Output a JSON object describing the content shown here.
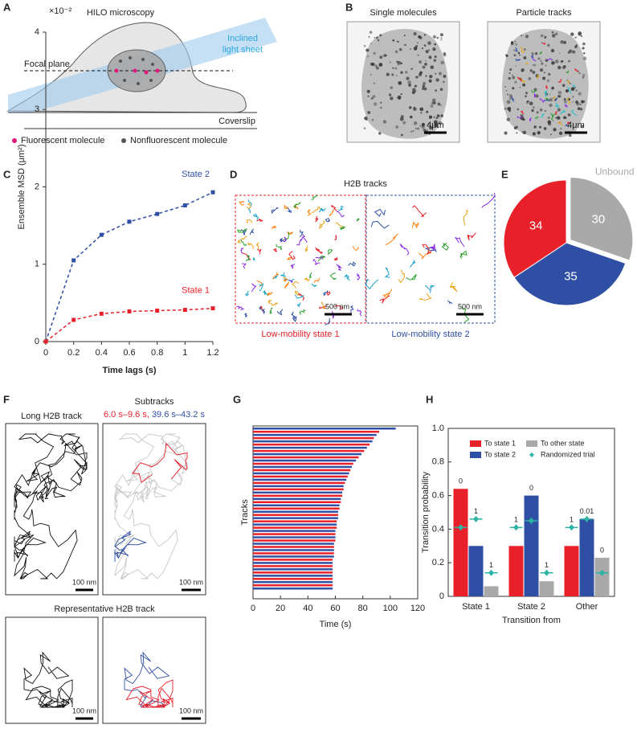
{
  "panel_labels": [
    "A",
    "B",
    "C",
    "D",
    "E",
    "F",
    "G",
    "H"
  ],
  "a": {
    "title": "HILO microscopy",
    "sheet": [
      "Inclined",
      "light sheet"
    ],
    "focal": "Focal plane",
    "coverslip": "Coverslip",
    "legend": [
      "Fluorescent molecule",
      "Nonfluorescent molecule"
    ]
  },
  "b": {
    "titles": [
      "Single molecules",
      "Particle tracks"
    ],
    "scale": [
      "4μm",
      "4μm"
    ]
  },
  "d": {
    "title": "H2B tracks",
    "scale": [
      "500 nm",
      "500 nm"
    ],
    "captions": [
      "Low-mobility state 1",
      "Low-mobility state 2"
    ]
  },
  "f": {
    "titles": [
      "Long H2B track",
      "Subtracks"
    ],
    "sub_a": "6.0 s–9.6 s,",
    "sub_b": "39.6 s–43.2 s",
    "bottom_title": "Representative H2B track",
    "scale": [
      "100 nm",
      "100 nm",
      "100 nm",
      "100 nm"
    ]
  },
  "chart_data": [
    {
      "type": "line",
      "multiplier": "×10⁻²",
      "ylabel": "Ensemble MSD (μm²)",
      "xlabel": "Time lags (s)",
      "x": [
        0,
        0.2,
        0.4,
        0.6,
        0.8,
        1,
        1.2
      ],
      "xlim": [
        0,
        1.2
      ],
      "xticks": [
        0,
        0.2,
        0.4,
        0.6,
        0.8,
        1,
        1.2
      ],
      "ylim": [
        0,
        4
      ],
      "yticks": [
        0,
        1,
        2,
        3,
        4
      ],
      "series": [
        {
          "name": "State 2",
          "color": "#2e4fa3",
          "values": [
            0,
            1.05,
            1.38,
            1.55,
            1.65,
            1.76,
            1.93
          ]
        },
        {
          "name": "State 1",
          "color": "#e8202a",
          "values": [
            0,
            0.28,
            0.36,
            0.39,
            0.4,
            0.41,
            0.43
          ]
        }
      ]
    },
    {
      "type": "pie",
      "categories": [
        "Unbound",
        null,
        null
      ],
      "values": [
        30,
        35,
        34
      ],
      "colors": [
        "#a9a9a9",
        "#2e4fa3",
        "#e8202a"
      ],
      "exploded": [
        true,
        false,
        false
      ]
    },
    {
      "type": "barh",
      "xlabel": "Time (s)",
      "ylabel": "Tracks",
      "xlim": [
        0,
        120
      ],
      "xticks": [
        0,
        20,
        40,
        60,
        80,
        100,
        120
      ],
      "colors": [
        "#2e4fa3",
        "#e8202a"
      ],
      "values": [
        104,
        92,
        90,
        88,
        87,
        85,
        83,
        81,
        79,
        77,
        75,
        73,
        72,
        71,
        70,
        69,
        68,
        67,
        66,
        66,
        65,
        65,
        64,
        64,
        63,
        63,
        62,
        62,
        62,
        61,
        61,
        61,
        60,
        60,
        60,
        60,
        59,
        59,
        59,
        59,
        59,
        58,
        58,
        58,
        58,
        58,
        58,
        58,
        58,
        58,
        58
      ]
    },
    {
      "type": "grouped_bar",
      "ylabel": "Transition probability",
      "xlabel": "Transition from",
      "categories": [
        "State 1",
        "State 2",
        "Other"
      ],
      "ylim": [
        0,
        1
      ],
      "yticks": [
        0,
        0.2,
        0.4,
        0.6,
        0.8,
        {
          "value": 1,
          "label": "1.0"
        }
      ],
      "random_name": "Randomized trial",
      "random_color": "#2bb3a3",
      "series": [
        {
          "name": "To state 1",
          "color": "#e8202a",
          "values": [
            0.64,
            0.3,
            0.3
          ],
          "random": [
            0.41,
            0.41,
            0.41
          ],
          "p_labels": [
            "0",
            "1",
            "1"
          ]
        },
        {
          "name": "To state 2",
          "color": "#2e4fa3",
          "values": [
            0.3,
            0.6,
            0.46
          ],
          "random": [
            0.46,
            0.45,
            0.46
          ],
          "p_labels": [
            "1",
            "0",
            "0.01"
          ]
        },
        {
          "name": "To other state",
          "color": "#a9a9a9",
          "values": [
            0.06,
            0.09,
            0.23
          ],
          "random": [
            0.14,
            0.14,
            0.14
          ],
          "p_labels": [
            "1",
            "1",
            "0"
          ]
        }
      ]
    }
  ]
}
